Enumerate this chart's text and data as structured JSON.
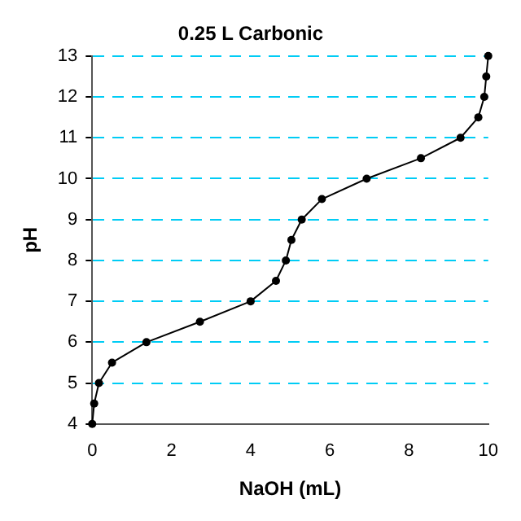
{
  "chart_data": {
    "type": "line",
    "title": "0.25 L Carbonic",
    "xlabel": "NaOH (mL)",
    "ylabel": "pH",
    "x": [
      0,
      0.05,
      0.17,
      0.5,
      1.37,
      2.72,
      4,
      4.64,
      4.89,
      5.03,
      5.29,
      5.8,
      6.93,
      8.3,
      9.3,
      9.75,
      9.9,
      9.95,
      10
    ],
    "series": [
      {
        "color": "#000000",
        "values": [
          4,
          4.5,
          5,
          5.5,
          6,
          6.5,
          7,
          7.5,
          8,
          8.5,
          9,
          9.5,
          10,
          10.5,
          11,
          11.5,
          12,
          12.5,
          13
        ]
      }
    ],
    "xlim": [
      0,
      10
    ],
    "xticks": [
      0,
      2,
      4,
      6,
      8,
      10
    ],
    "ylim": [
      4,
      13
    ],
    "yticks": [
      4,
      5,
      6,
      7,
      8,
      9,
      10,
      11,
      12,
      13
    ],
    "grid": "y",
    "legend": false,
    "marker": "circle",
    "line_style": "solid"
  }
}
